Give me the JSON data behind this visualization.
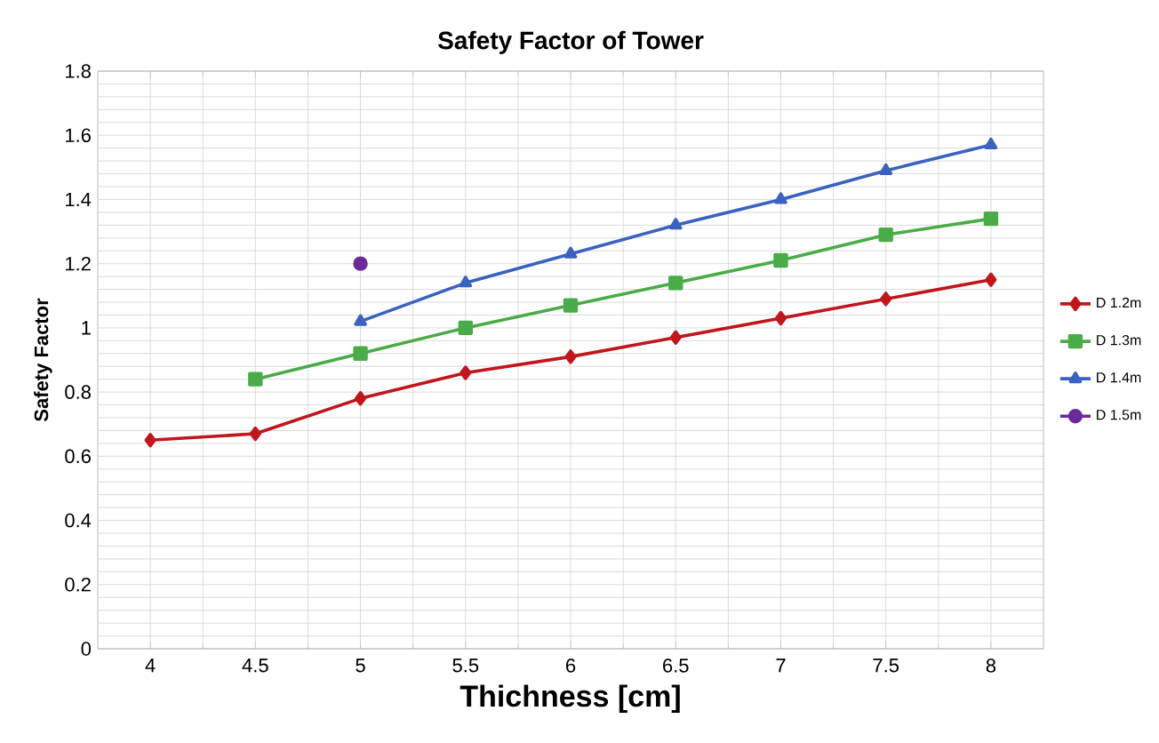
{
  "chart_data": {
    "type": "line",
    "title": "Safety Factor of Tower",
    "xlabel": "Thichness [cm]",
    "ylabel": "Safety Factor",
    "categories": [
      "4",
      "4.5",
      "5",
      "5.5",
      "6",
      "6.5",
      "7",
      "7.5",
      "8"
    ],
    "series": [
      {
        "name": "D 1.2m",
        "color": "#c0161c",
        "marker": "diamond",
        "values": [
          0.65,
          0.67,
          0.78,
          0.86,
          0.91,
          0.97,
          1.03,
          1.09,
          1.15
        ]
      },
      {
        "name": "D 1.3m",
        "color": "#4aac48",
        "marker": "square",
        "values": [
          null,
          0.84,
          0.92,
          1.0,
          1.07,
          1.14,
          1.21,
          1.29,
          1.34
        ]
      },
      {
        "name": "D 1.4m",
        "color": "#3b62c0",
        "marker": "triangle",
        "values": [
          null,
          null,
          1.02,
          1.14,
          1.23,
          1.32,
          1.4,
          1.49,
          1.57
        ]
      },
      {
        "name": "D 1.5m",
        "color": "#6a2a9c",
        "marker": "circle",
        "values": [
          null,
          null,
          1.2,
          null,
          null,
          null,
          null,
          null,
          null
        ]
      }
    ],
    "ylim": [
      0,
      1.8
    ],
    "yticks": [
      0,
      0.2,
      0.4,
      0.6,
      0.8,
      1,
      1.2,
      1.4,
      1.6,
      1.8
    ],
    "grid": true,
    "legend": "right",
    "line_style": "solid"
  }
}
